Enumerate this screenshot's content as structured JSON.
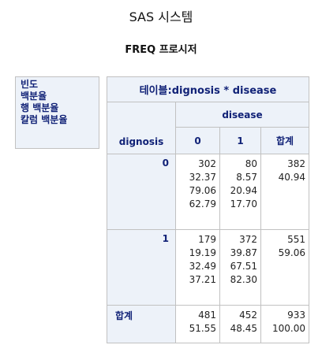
{
  "title": "SAS 시스템",
  "subtitle": "FREQ 프로시저",
  "legend": {
    "line1": "빈도",
    "line2": "백분율",
    "line3": "행 백분율",
    "line4": "칼럼 백분율"
  },
  "table": {
    "header": "테이블:dignosis * disease",
    "col_var": "disease",
    "row_var": "dignosis",
    "col_headers": [
      "0",
      "1",
      "합계"
    ],
    "rows": [
      {
        "label": "0",
        "cells": [
          [
            "302",
            "32.37",
            "79.06",
            "62.79"
          ],
          [
            "80",
            "8.57",
            "20.94",
            "17.70"
          ],
          [
            "382",
            "40.94"
          ]
        ]
      },
      {
        "label": "1",
        "cells": [
          [
            "179",
            "19.19",
            "32.49",
            "37.21"
          ],
          [
            "372",
            "39.87",
            "67.51",
            "82.30"
          ],
          [
            "551",
            "59.06"
          ]
        ]
      }
    ],
    "total_row": {
      "label": "합계",
      "cells": [
        [
          "481",
          "51.55"
        ],
        [
          "452",
          "48.45"
        ],
        [
          "933",
          "100.00"
        ]
      ]
    }
  }
}
